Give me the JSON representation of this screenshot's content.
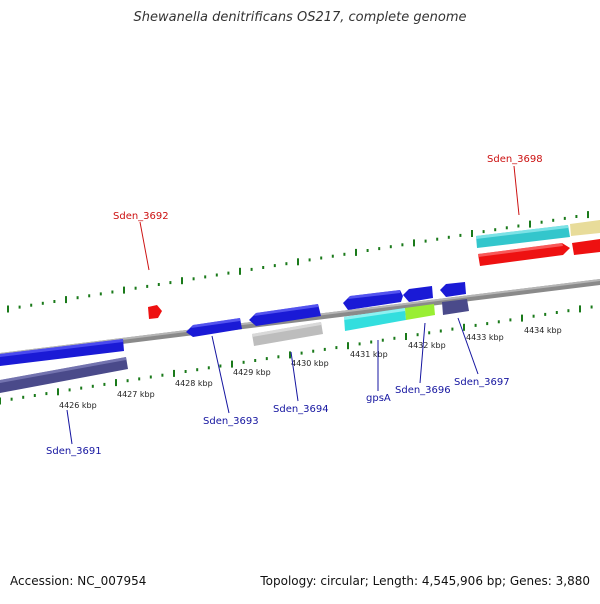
{
  "title": "Shewanella denitrificans OS217, complete genome",
  "footer": {
    "accession": "Accession: NC_007954",
    "summary": "Topology: circular; Length: 4,545,906 bp; Genes: 3,880"
  },
  "colors": {
    "background": "#ffffff",
    "backbone": "#888888",
    "tick": "#1a7a1a",
    "gene_blue": "#1a1ad6",
    "gene_navy": "#4a4a8a",
    "gene_gray": "#bdbdbd",
    "gene_cyan": "#33dede",
    "gene_green": "#99ee33",
    "gene_red": "#ee1111",
    "gene_tan": "#e8dc9a",
    "label_blue": "#1515a0",
    "label_red": "#cc1111"
  },
  "kbp_labels": [
    "4426 kbp",
    "4427 kbp",
    "4428 kbp",
    "4429 kbp",
    "4430 kbp",
    "4431 kbp",
    "4432 kbp",
    "4433 kbp",
    "4434 kbp"
  ],
  "gene_labels": [
    {
      "id": "3691",
      "text": "Sden_3691",
      "color": "blue"
    },
    {
      "id": "3692",
      "text": "Sden_3692",
      "color": "red"
    },
    {
      "id": "3693",
      "text": "Sden_3693",
      "color": "blue"
    },
    {
      "id": "3694",
      "text": "Sden_3694",
      "color": "blue"
    },
    {
      "id": "gpsA",
      "text": "gpsA",
      "color": "blue"
    },
    {
      "id": "3696",
      "text": "Sden_3696",
      "color": "blue"
    },
    {
      "id": "3697",
      "text": "Sden_3697",
      "color": "blue"
    },
    {
      "id": "3698",
      "text": "Sden_3698",
      "color": "red"
    }
  ]
}
